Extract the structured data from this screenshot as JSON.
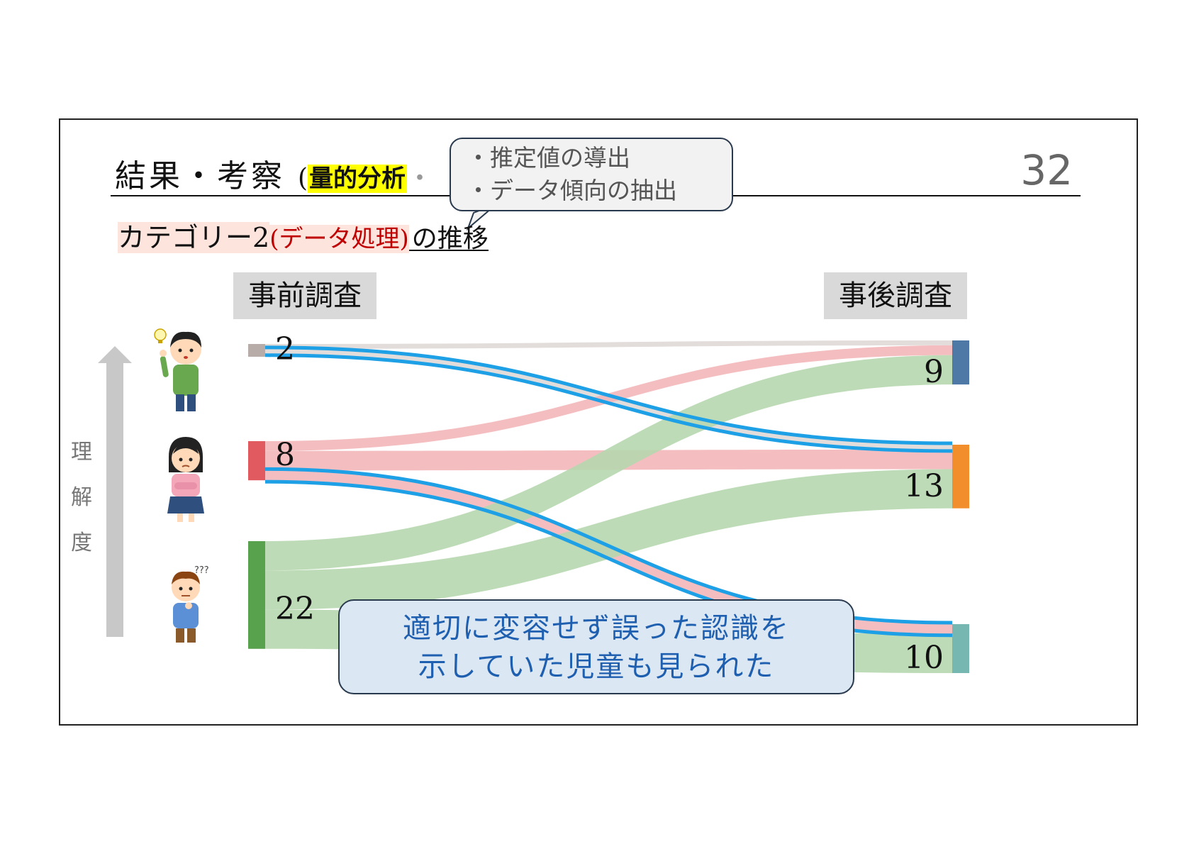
{
  "slide": {
    "title_main": "結果・考察",
    "title_paren_open": "(",
    "title_highlight": "量的分析",
    "title_tail": "・",
    "page_number": "32"
  },
  "callout": {
    "lines": [
      "・推定値の導出",
      "・データ傾向の抽出"
    ]
  },
  "subtitle": {
    "category": "カテゴリー2",
    "paren": "(データ処理)",
    "rest": "の推移"
  },
  "labels": {
    "pre_survey": "事前調査",
    "post_survey": "事後調査",
    "axis": [
      "理",
      "解",
      "度"
    ]
  },
  "bubble": {
    "line1": "適切に変容せず誤った認識を",
    "line2": "示していた児童も見られた"
  },
  "chart_data": {
    "type": "sankey",
    "left_nodes": [
      {
        "id": "pre-high",
        "value": 2,
        "label": "2",
        "color": "#b8aca8"
      },
      {
        "id": "pre-mid",
        "value": 8,
        "label": "8",
        "color": "#e05a5f"
      },
      {
        "id": "pre-low",
        "value": 22,
        "label": "22",
        "color": "#58a24e"
      }
    ],
    "right_nodes": [
      {
        "id": "post-high",
        "value": 9,
        "label": "9",
        "color": "#4e79a7"
      },
      {
        "id": "post-mid",
        "value": 13,
        "label": "13",
        "color": "#f28e2b"
      },
      {
        "id": "post-low",
        "value": 10,
        "label": "10",
        "color": "#76b7b2"
      }
    ],
    "links": [
      {
        "source": "pre-high",
        "target": "post-high",
        "value": 1,
        "color": "#ddd6d4"
      },
      {
        "source": "pre-high",
        "target": "post-mid",
        "value": 1,
        "color": "#ddd6d4",
        "highlight": true
      },
      {
        "source": "pre-mid",
        "target": "post-high",
        "value": 2,
        "color": "#f2b3b5"
      },
      {
        "source": "pre-mid",
        "target": "post-mid",
        "value": 4,
        "color": "#f2b3b5"
      },
      {
        "source": "pre-mid",
        "target": "post-low",
        "value": 2,
        "color": "#f2b3b5",
        "highlight": true
      },
      {
        "source": "pre-low",
        "target": "post-high",
        "value": 6,
        "color": "#b6d7ae"
      },
      {
        "source": "pre-low",
        "target": "post-mid",
        "value": 8,
        "color": "#b6d7ae"
      },
      {
        "source": "pre-low",
        "target": "post-low",
        "value": 8,
        "color": "#b6d7ae"
      }
    ],
    "highlight_color": "#1ea0e6"
  }
}
